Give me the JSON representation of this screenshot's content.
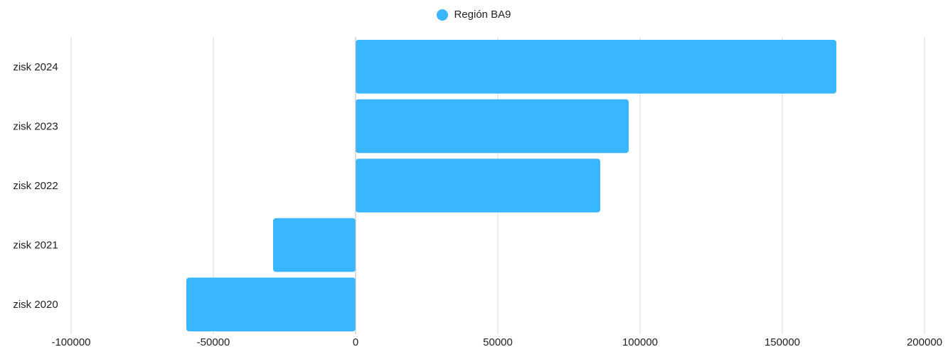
{
  "chart_data": {
    "type": "bar",
    "orientation": "horizontal",
    "categories": [
      "zisk 2024",
      "zisk 2023",
      "zisk 2022",
      "zisk 2021",
      "zisk 2020"
    ],
    "series": [
      {
        "name": "Región BA9",
        "color": "#38b6ff",
        "values": [
          169000,
          96000,
          86000,
          -29000,
          -59500
        ]
      }
    ],
    "xlim": [
      -100000,
      200000
    ],
    "x_ticks": [
      "-100000",
      "-50000",
      "0",
      "50000",
      "100000",
      "150000",
      "200000"
    ],
    "grid": "vertical",
    "legend_position": "top-center",
    "title": "",
    "xlabel": "",
    "ylabel": ""
  }
}
